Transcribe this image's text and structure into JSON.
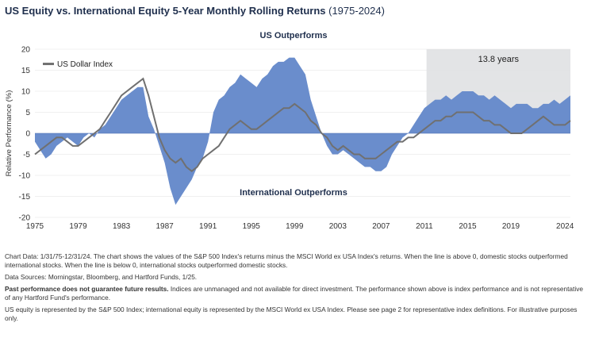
{
  "title": {
    "main": "US Equity vs. International Equity 5-Year Monthly Rolling Returns",
    "years": "(1975-2024)"
  },
  "chart_data": {
    "type": "area",
    "ylabel": "Relative Performance (%)",
    "ylim": [
      -20,
      20
    ],
    "yticks": [
      20,
      15,
      10,
      5,
      0,
      -5,
      -10,
      -15,
      -20
    ],
    "xlim": [
      1975,
      2024.5
    ],
    "xticks": [
      "1975",
      "1979",
      "1983",
      "1987",
      "1991",
      "1995",
      "1999",
      "2003",
      "2007",
      "2011",
      "2015",
      "2019",
      "2024"
    ],
    "annotations": {
      "top": "US Outperforms",
      "bottom": "International Outperforms",
      "shaded_region_label": "13.8 years",
      "shaded_region": [
        2011.2,
        2025
      ]
    },
    "area_color": "#6a8dcc",
    "line_color": "#707070",
    "shade_color": "#e3e4e6",
    "series": [
      {
        "type": "area",
        "x": [
          1975.0,
          1975.5,
          1976.0,
          1976.5,
          1977.0,
          1977.5,
          1978.0,
          1978.5,
          1979.0,
          1979.5,
          1980.0,
          1980.5,
          1981.0,
          1981.5,
          1982.0,
          1982.5,
          1983.0,
          1983.5,
          1984.0,
          1984.5,
          1985.0,
          1985.5,
          1986.0,
          1986.5,
          1987.0,
          1987.5,
          1988.0,
          1988.5,
          1989.0,
          1989.5,
          1990.0,
          1990.5,
          1991.0,
          1991.5,
          1992.0,
          1992.5,
          1993.0,
          1993.5,
          1994.0,
          1994.5,
          1995.0,
          1995.5,
          1996.0,
          1996.5,
          1997.0,
          1997.5,
          1998.0,
          1998.5,
          1999.0,
          1999.5,
          2000.0,
          2000.5,
          2001.0,
          2001.5,
          2002.0,
          2002.5,
          2003.0,
          2003.5,
          2004.0,
          2004.5,
          2005.0,
          2005.5,
          2006.0,
          2006.5,
          2007.0,
          2007.5,
          2008.0,
          2008.5,
          2009.0,
          2009.5,
          2010.0,
          2010.5,
          2011.0,
          2011.5,
          2012.0,
          2012.5,
          2013.0,
          2013.5,
          2014.0,
          2014.5,
          2015.0,
          2015.5,
          2016.0,
          2016.5,
          2017.0,
          2017.5,
          2018.0,
          2018.5,
          2019.0,
          2019.5,
          2020.0,
          2020.5,
          2021.0,
          2021.5,
          2022.0,
          2022.5,
          2023.0,
          2023.5,
          2024.0,
          2024.5
        ],
        "values": [
          -2,
          -4,
          -6,
          -5,
          -3,
          -2,
          -1,
          -2,
          -3,
          -1,
          0,
          -1,
          1,
          2,
          4,
          6,
          8,
          9,
          10,
          11,
          11,
          4,
          1,
          -3,
          -7,
          -13,
          -17,
          -15,
          -13,
          -11,
          -8,
          -6,
          -2,
          5,
          8,
          9,
          11,
          12,
          14,
          13,
          12,
          11,
          13,
          14,
          16,
          17,
          17,
          18,
          18,
          16,
          14,
          8,
          4,
          0,
          -3,
          -5,
          -5,
          -4,
          -5,
          -6,
          -7,
          -8,
          -8,
          -9,
          -9,
          -8,
          -5,
          -3,
          -1,
          0,
          2,
          4,
          6,
          7,
          8,
          8,
          9,
          8,
          9,
          10,
          10,
          10,
          9,
          9,
          8,
          9,
          8,
          7,
          6,
          7,
          7,
          7,
          6,
          6,
          7,
          7,
          8,
          7,
          8,
          9
        ]
      },
      {
        "name": "US Dollar Index",
        "type": "line",
        "x": [
          1975.0,
          1975.5,
          1976.0,
          1976.5,
          1977.0,
          1977.5,
          1978.0,
          1978.5,
          1979.0,
          1979.5,
          1980.0,
          1980.5,
          1981.0,
          1981.5,
          1982.0,
          1982.5,
          1983.0,
          1983.5,
          1984.0,
          1984.5,
          1985.0,
          1985.5,
          1986.0,
          1986.5,
          1987.0,
          1987.5,
          1988.0,
          1988.5,
          1989.0,
          1989.5,
          1990.0,
          1990.5,
          1991.0,
          1991.5,
          1992.0,
          1992.5,
          1993.0,
          1993.5,
          1994.0,
          1994.5,
          1995.0,
          1995.5,
          1996.0,
          1996.5,
          1997.0,
          1997.5,
          1998.0,
          1998.5,
          1999.0,
          1999.5,
          2000.0,
          2000.5,
          2001.0,
          2001.5,
          2002.0,
          2002.5,
          2003.0,
          2003.5,
          2004.0,
          2004.5,
          2005.0,
          2005.5,
          2006.0,
          2006.5,
          2007.0,
          2007.5,
          2008.0,
          2008.5,
          2009.0,
          2009.5,
          2010.0,
          2010.5,
          2011.0,
          2011.5,
          2012.0,
          2012.5,
          2013.0,
          2013.5,
          2014.0,
          2014.5,
          2015.0,
          2015.5,
          2016.0,
          2016.5,
          2017.0,
          2017.5,
          2018.0,
          2018.5,
          2019.0,
          2019.5,
          2020.0,
          2020.5,
          2021.0,
          2021.5,
          2022.0,
          2022.5,
          2023.0,
          2023.5,
          2024.0,
          2024.5
        ],
        "values": [
          -5,
          -4,
          -3,
          -2,
          -1,
          -1,
          -2,
          -3,
          -3,
          -2,
          -1,
          0,
          1,
          3,
          5,
          7,
          9,
          10,
          11,
          12,
          13,
          9,
          4,
          -1,
          -4,
          -6,
          -7,
          -6,
          -8,
          -9,
          -8,
          -6,
          -5,
          -4,
          -3,
          -1,
          1,
          2,
          3,
          2,
          1,
          1,
          2,
          3,
          4,
          5,
          6,
          6,
          7,
          6,
          5,
          3,
          2,
          0,
          -1,
          -3,
          -4,
          -3,
          -4,
          -5,
          -5,
          -6,
          -6,
          -6,
          -5,
          -4,
          -3,
          -2,
          -2,
          -1,
          -1,
          0,
          1,
          2,
          3,
          3,
          4,
          4,
          5,
          5,
          5,
          5,
          4,
          3,
          3,
          2,
          2,
          1,
          0,
          0,
          0,
          1,
          2,
          3,
          4,
          3,
          2,
          2,
          2,
          3
        ]
      }
    ]
  },
  "notes": {
    "chart_data_text": "Chart Data: 1/31/75-12/31/24. The chart shows the values of the S&P 500 Index's returns minus the MSCI World ex USA Index's returns. When the line is above 0, domestic stocks outperformed international stocks. When the line is below 0, international stocks outperformed domestic stocks.",
    "sources": "Data Sources: Morningstar, Bloomberg, and Hartford Funds, 1/25.",
    "past_performance_bold": "Past performance does not guarantee future results.",
    "past_performance_rest": " Indices are unmanaged and not available for direct investment. The performance shown above is index performance and is not representative of any Hartford Fund's performance.",
    "definitions": "US equity is represented by the S&P 500 Index; international equity is represented by the MSCI World ex USA Index. Please see page 2 for representative index definitions. For illustrative purposes only."
  }
}
